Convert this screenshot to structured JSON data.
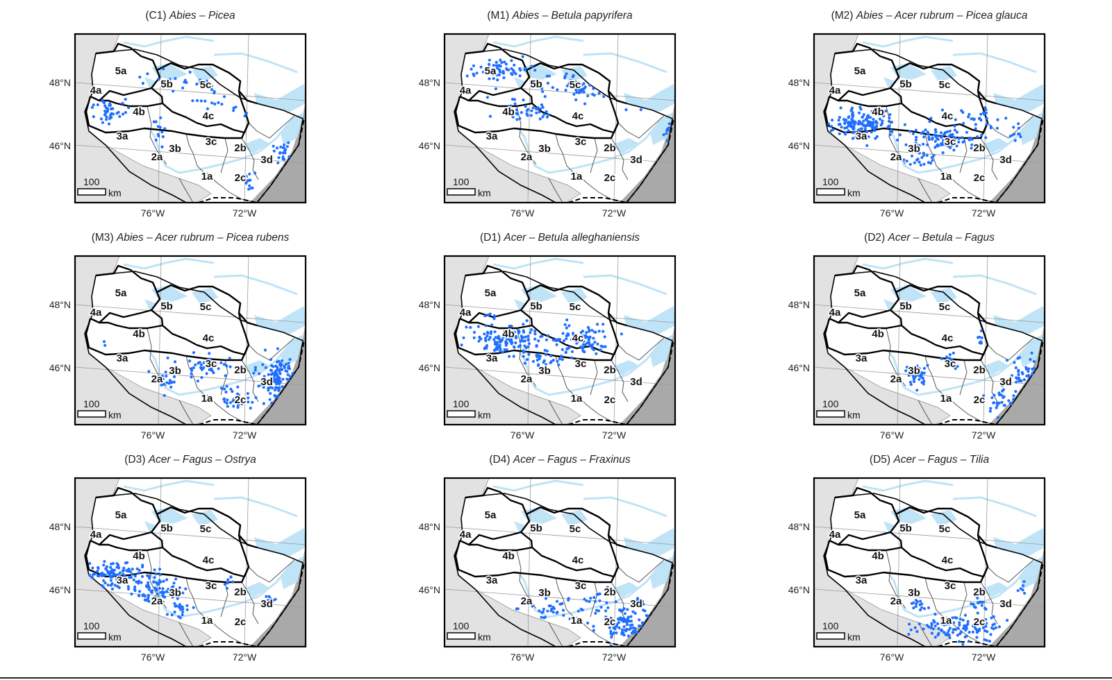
{
  "panels": [
    {
      "code": "(C1)",
      "species": "Abies –  Picea",
      "pattern": "spread-north"
    },
    {
      "code": "(M1)",
      "species": "Abies –  Betula papyrifera",
      "pattern": "north"
    },
    {
      "code": "(M2)",
      "species": "Abies –  Acer rubrum –  Picea glauca",
      "pattern": "mid"
    },
    {
      "code": "(M3)",
      "species": "Abies –  Acer rubrum –  Picea rubens",
      "pattern": "east"
    },
    {
      "code": "(D1)",
      "species": "Acer –  Betula alleghaniensis",
      "pattern": "mid-north"
    },
    {
      "code": "(D2)",
      "species": "Acer –  Betula –  Fagus",
      "pattern": "east-south"
    },
    {
      "code": "(D3)",
      "species": "Acer –  Fagus –  Ostrya",
      "pattern": "southwest"
    },
    {
      "code": "(D4)",
      "species": "Acer –  Fagus –  Fraxinus",
      "pattern": "south"
    },
    {
      "code": "(D5)",
      "species": "Acer –  Fagus –  Tilia",
      "pattern": "south-central"
    }
  ],
  "region_labels": [
    "5a",
    "5b",
    "5c",
    "4a",
    "4b",
    "4c",
    "3a",
    "3b",
    "3c",
    "3d",
    "2a",
    "2b",
    "2c",
    "1a"
  ],
  "lat_labels": [
    "48°N",
    "46°N"
  ],
  "lon_labels": [
    "76°W",
    "72°W"
  ],
  "scale_bar": {
    "value": "100",
    "unit": "km"
  },
  "colors": {
    "occurrence": "#1f6fff",
    "water": "#bfe3f7",
    "land_outside": "#e2e2e2",
    "ocean_grey": "#a9a9a9",
    "boundary_major": "#000000",
    "boundary_minor": "#555555"
  }
}
